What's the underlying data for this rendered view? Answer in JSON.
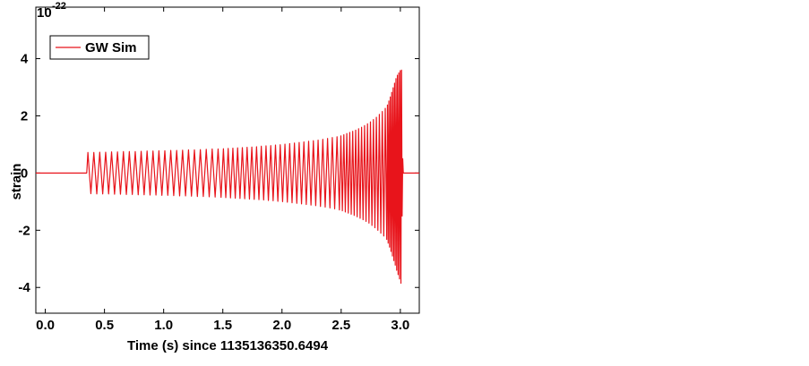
{
  "chart_data": {
    "type": "line",
    "x_label": "Time (s) since 1135136350.6494",
    "y_label": "strain",
    "y_offset_base": "10",
    "y_offset_exponent": "-22",
    "xlim": [
      -0.08,
      3.16
    ],
    "ylim": [
      -4.9,
      5.8
    ],
    "xticks": [
      {
        "value": 0,
        "label": "0.0"
      },
      0.5,
      {
        "value": 1,
        "label": "1.0"
      },
      1.5,
      {
        "value": 2,
        "label": "2.0"
      },
      2.5,
      {
        "value": 3,
        "label": "3.0"
      }
    ],
    "yticks": [
      -4,
      -2,
      0,
      2,
      4
    ],
    "legend": "top-left",
    "x": [
      -0.08,
      0.35,
      0.36,
      0.385,
      0.41,
      0.435,
      0.46,
      0.485,
      0.51,
      0.535,
      0.56,
      0.585,
      0.61,
      0.635,
      0.66,
      0.685,
      0.71,
      0.735,
      0.76,
      0.785,
      0.81,
      0.835,
      0.86,
      0.885,
      0.91,
      0.935,
      0.96,
      0.985,
      1.01,
      1.035,
      1.06,
      1.085,
      1.11,
      1.135,
      1.16,
      1.185,
      1.21,
      1.235,
      1.26,
      1.285,
      1.31,
      1.335,
      1.36,
      1.385,
      1.41,
      1.435,
      1.46,
      1.485,
      1.505,
      1.525,
      1.545,
      1.565,
      1.585,
      1.605,
      1.625,
      1.645,
      1.665,
      1.685,
      1.705,
      1.725,
      1.745,
      1.765,
      1.785,
      1.805,
      1.825,
      1.845,
      1.865,
      1.885,
      1.905,
      1.925,
      1.945,
      1.965,
      1.985,
      2.005,
      2.025,
      2.045,
      2.065,
      2.085,
      2.105,
      2.125,
      2.145,
      2.165,
      2.185,
      2.205,
      2.225,
      2.245,
      2.265,
      2.285,
      2.305,
      2.325,
      2.345,
      2.365,
      2.385,
      2.405,
      2.425,
      2.445,
      2.465,
      2.485,
      2.4975,
      2.51,
      2.5225,
      2.535,
      2.5475,
      2.56,
      2.5725,
      2.585,
      2.5975,
      2.61,
      2.6225,
      2.635,
      2.6475,
      2.66,
      2.6725,
      2.685,
      2.6975,
      2.71,
      2.7225,
      2.735,
      2.7475,
      2.76,
      2.7725,
      2.785,
      2.7975,
      2.81,
      2.8225,
      2.835,
      2.8475,
      2.86,
      2.8725,
      2.885,
      2.891,
      2.897,
      2.903,
      2.909,
      2.915,
      2.921,
      2.927,
      2.933,
      2.939,
      2.945,
      2.951,
      2.957,
      2.963,
      2.969,
      2.975,
      2.981,
      2.987,
      2.993,
      2.999,
      3.005,
      3.01,
      3.015,
      3.02,
      3.025,
      3.16
    ],
    "series": [
      {
        "name": "GW Sim",
        "color": "#e8141b",
        "values": [
          0,
          0,
          0.72,
          -0.72,
          0.72,
          -0.73,
          0.73,
          -0.73,
          0.73,
          -0.73,
          0.74,
          -0.74,
          0.74,
          -0.74,
          0.75,
          -0.75,
          0.75,
          -0.75,
          0.75,
          -0.76,
          0.76,
          -0.76,
          0.77,
          -0.77,
          0.77,
          -0.77,
          0.78,
          -0.78,
          0.78,
          -0.78,
          0.79,
          -0.79,
          0.79,
          -0.8,
          0.8,
          -0.8,
          0.81,
          -0.81,
          0.81,
          -0.82,
          0.82,
          -0.82,
          0.83,
          -0.83,
          0.84,
          -0.84,
          0.84,
          -0.85,
          0.85,
          -0.86,
          0.86,
          -0.87,
          0.87,
          -0.88,
          0.88,
          -0.89,
          0.89,
          -0.9,
          0.9,
          -0.91,
          0.91,
          -0.92,
          0.92,
          -0.93,
          0.94,
          -0.94,
          0.95,
          -0.96,
          0.96,
          -0.97,
          0.98,
          -0.99,
          0.99,
          -1.0,
          1.01,
          -1.02,
          1.03,
          -1.04,
          1.05,
          -1.06,
          1.07,
          -1.08,
          1.09,
          -1.1,
          1.11,
          -1.12,
          1.13,
          -1.14,
          1.15,
          -1.17,
          1.18,
          -1.19,
          1.21,
          -1.22,
          1.24,
          -1.25,
          1.27,
          -1.29,
          1.3,
          -1.32,
          1.34,
          -1.36,
          1.38,
          -1.4,
          1.42,
          -1.44,
          1.46,
          -1.48,
          1.5,
          -1.53,
          1.55,
          -1.58,
          1.6,
          -1.63,
          1.66,
          -1.69,
          1.72,
          -1.75,
          1.79,
          -1.83,
          1.87,
          -1.91,
          1.95,
          -2.0,
          2.05,
          -2.1,
          2.15,
          -2.2,
          2.26,
          -2.32,
          2.38,
          -2.45,
          2.52,
          -2.59,
          2.66,
          -2.74,
          2.82,
          -2.9,
          2.98,
          -3.06,
          3.14,
          -3.22,
          3.3,
          -3.4,
          3.42,
          -3.55,
          3.5,
          -3.7,
          3.58,
          -3.85,
          3.6,
          -1.5,
          0.5,
          0,
          0
        ]
      }
    ]
  }
}
